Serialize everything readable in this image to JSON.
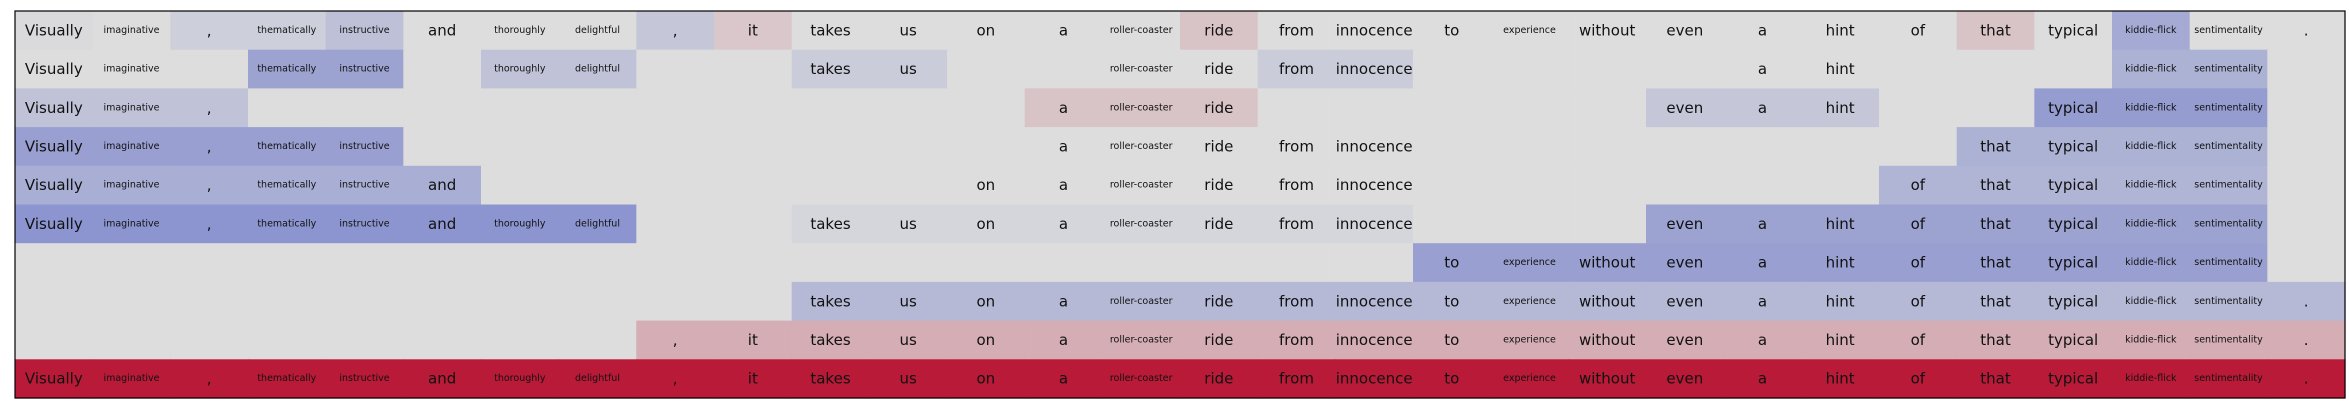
{
  "chart_data": {
    "type": "heatmap",
    "title": "",
    "xlabel": "",
    "ylabel": "",
    "grid": false,
    "tokens": [
      "Visually",
      "imaginative",
      ",",
      "thematically",
      "instructive",
      "and",
      "thoroughly",
      "delightful",
      ",",
      "it",
      "takes",
      "us",
      "on",
      "a",
      "roller-coaster",
      "ride",
      "from",
      "innocence",
      "to",
      "experience",
      "without",
      "even",
      "a",
      "hint",
      "of",
      "that",
      "typical",
      "kiddie-flick",
      "sentimentality",
      "."
    ],
    "rows": [
      {
        "mask": [
          1,
          1,
          1,
          1,
          1,
          1,
          1,
          1,
          1,
          1,
          1,
          1,
          1,
          1,
          1,
          1,
          1,
          1,
          1,
          1,
          1,
          1,
          1,
          1,
          1,
          1,
          1,
          1,
          1,
          1
        ],
        "values": [
          0.02,
          0.0,
          0.1,
          0.1,
          0.2,
          0.0,
          0.0,
          0.0,
          0.15,
          -0.1,
          0.0,
          0.0,
          0.0,
          0.0,
          0.0,
          -0.12,
          0.0,
          0.0,
          0.0,
          0.0,
          0.0,
          0.0,
          0.0,
          0.0,
          0.0,
          -0.12,
          0.0,
          0.35,
          0.0,
          0.0
        ]
      },
      {
        "mask": [
          1,
          1,
          0,
          1,
          1,
          0,
          1,
          1,
          0,
          0,
          1,
          1,
          0,
          0,
          1,
          1,
          1,
          1,
          0,
          0,
          0,
          0,
          1,
          1,
          0,
          0,
          0,
          1,
          1,
          0
        ],
        "values": [
          0.0,
          0.0,
          0.0,
          0.4,
          0.4,
          0.0,
          0.18,
          0.18,
          0.0,
          0.0,
          0.12,
          0.12,
          0.0,
          0.0,
          0.0,
          0.0,
          0.12,
          0.12,
          0.0,
          0.0,
          0.0,
          0.0,
          0.0,
          0.0,
          0.0,
          0.0,
          0.0,
          0.3,
          0.3,
          0.0
        ]
      },
      {
        "mask": [
          1,
          1,
          1,
          0,
          0,
          0,
          0,
          0,
          0,
          0,
          0,
          0,
          0,
          1,
          1,
          1,
          0,
          0,
          0,
          0,
          0,
          1,
          1,
          1,
          0,
          0,
          1,
          1,
          1,
          0
        ],
        "values": [
          0.18,
          0.18,
          0.18,
          0.0,
          0.0,
          0.0,
          0.0,
          0.0,
          0.0,
          0.0,
          0.0,
          0.0,
          0.0,
          -0.12,
          -0.12,
          -0.12,
          0.0,
          0.0,
          0.0,
          0.0,
          0.0,
          0.15,
          0.15,
          0.15,
          0.0,
          0.0,
          0.45,
          0.45,
          0.45,
          0.0
        ]
      },
      {
        "mask": [
          1,
          1,
          1,
          1,
          1,
          0,
          0,
          0,
          0,
          0,
          0,
          0,
          0,
          1,
          1,
          1,
          1,
          1,
          0,
          0,
          0,
          0,
          0,
          0,
          0,
          1,
          1,
          1,
          1,
          0
        ],
        "values": [
          0.42,
          0.42,
          0.42,
          0.42,
          0.42,
          0.0,
          0.0,
          0.0,
          0.0,
          0.0,
          0.0,
          0.0,
          0.0,
          0.0,
          0.0,
          0.0,
          0.0,
          0.0,
          0.0,
          0.0,
          0.0,
          0.0,
          0.0,
          0.0,
          0.0,
          0.3,
          0.3,
          0.3,
          0.3,
          0.0
        ]
      },
      {
        "mask": [
          1,
          1,
          1,
          1,
          1,
          1,
          0,
          0,
          0,
          0,
          0,
          0,
          1,
          1,
          1,
          1,
          1,
          1,
          0,
          0,
          0,
          0,
          0,
          0,
          1,
          1,
          1,
          1,
          1,
          0
        ],
        "values": [
          0.32,
          0.32,
          0.32,
          0.32,
          0.32,
          0.32,
          0.0,
          0.0,
          0.0,
          0.0,
          0.0,
          0.0,
          0.0,
          0.0,
          0.0,
          0.0,
          0.0,
          0.0,
          0.0,
          0.0,
          0.0,
          0.0,
          0.0,
          0.0,
          0.28,
          0.28,
          0.28,
          0.28,
          0.28,
          0.0
        ]
      },
      {
        "mask": [
          1,
          1,
          1,
          1,
          1,
          1,
          1,
          1,
          0,
          0,
          1,
          1,
          1,
          1,
          1,
          1,
          1,
          1,
          0,
          0,
          0,
          1,
          1,
          1,
          1,
          1,
          1,
          1,
          1,
          0
        ],
        "values": [
          0.5,
          0.5,
          0.5,
          0.5,
          0.5,
          0.5,
          0.5,
          0.5,
          0.0,
          0.0,
          0.05,
          0.05,
          0.05,
          0.05,
          0.05,
          0.05,
          0.05,
          0.05,
          0.0,
          0.0,
          0.0,
          0.4,
          0.4,
          0.4,
          0.4,
          0.4,
          0.4,
          0.4,
          0.4,
          0.0
        ]
      },
      {
        "mask": [
          0,
          0,
          0,
          0,
          0,
          0,
          0,
          0,
          0,
          0,
          0,
          0,
          0,
          0,
          0,
          0,
          0,
          0,
          1,
          1,
          1,
          1,
          1,
          1,
          1,
          1,
          1,
          1,
          1,
          0
        ],
        "values": [
          0.0,
          0.0,
          0.0,
          0.0,
          0.0,
          0.0,
          0.0,
          0.0,
          0.0,
          0.0,
          0.0,
          0.0,
          0.0,
          0.0,
          0.0,
          0.0,
          0.0,
          0.0,
          0.42,
          0.42,
          0.42,
          0.42,
          0.42,
          0.42,
          0.42,
          0.42,
          0.42,
          0.42,
          0.42,
          0.0
        ]
      },
      {
        "mask": [
          0,
          0,
          0,
          0,
          0,
          0,
          0,
          0,
          0,
          0,
          1,
          1,
          1,
          1,
          1,
          1,
          1,
          1,
          1,
          1,
          1,
          1,
          1,
          1,
          1,
          1,
          1,
          1,
          1,
          1
        ],
        "values": [
          0.0,
          0.0,
          0.0,
          0.0,
          0.0,
          0.0,
          0.0,
          0.0,
          0.0,
          0.0,
          0.25,
          0.25,
          0.25,
          0.25,
          0.25,
          0.25,
          0.25,
          0.25,
          0.25,
          0.25,
          0.25,
          0.25,
          0.25,
          0.25,
          0.25,
          0.25,
          0.25,
          0.25,
          0.25,
          0.25
        ]
      },
      {
        "mask": [
          0,
          0,
          0,
          0,
          0,
          0,
          0,
          0,
          1,
          1,
          1,
          1,
          1,
          1,
          1,
          1,
          1,
          1,
          1,
          1,
          1,
          1,
          1,
          1,
          1,
          1,
          1,
          1,
          1,
          1
        ],
        "values": [
          0.0,
          0.0,
          0.0,
          0.0,
          0.0,
          0.0,
          0.0,
          0.0,
          -0.22,
          -0.22,
          -0.22,
          -0.22,
          -0.22,
          -0.22,
          -0.22,
          -0.22,
          -0.22,
          -0.22,
          -0.22,
          -0.22,
          -0.22,
          -0.22,
          -0.22,
          -0.22,
          -0.22,
          -0.22,
          -0.22,
          -0.22,
          -0.22,
          -0.22
        ]
      },
      {
        "mask": [
          1,
          1,
          1,
          1,
          1,
          1,
          1,
          1,
          1,
          1,
          1,
          1,
          1,
          1,
          1,
          1,
          1,
          1,
          1,
          1,
          1,
          1,
          1,
          1,
          1,
          1,
          1,
          1,
          1,
          1
        ],
        "values": [
          -0.9,
          -0.9,
          -0.9,
          -0.9,
          -0.9,
          -0.9,
          -0.9,
          -0.9,
          -0.9,
          -0.9,
          -0.9,
          -0.9,
          -0.9,
          -0.9,
          -0.9,
          -0.9,
          -0.9,
          -0.9,
          -0.9,
          -0.9,
          -0.9,
          -0.9,
          -0.9,
          -0.9,
          -0.9,
          -0.9,
          -0.9,
          -0.9,
          -0.9,
          -0.9
        ]
      }
    ],
    "colormap": {
      "name": "coolwarm",
      "negative": "#b40426",
      "neutral": "#dddddd",
      "positive": "#3b4cc0",
      "range": [
        -1,
        1
      ]
    },
    "border_color": "#000000"
  }
}
